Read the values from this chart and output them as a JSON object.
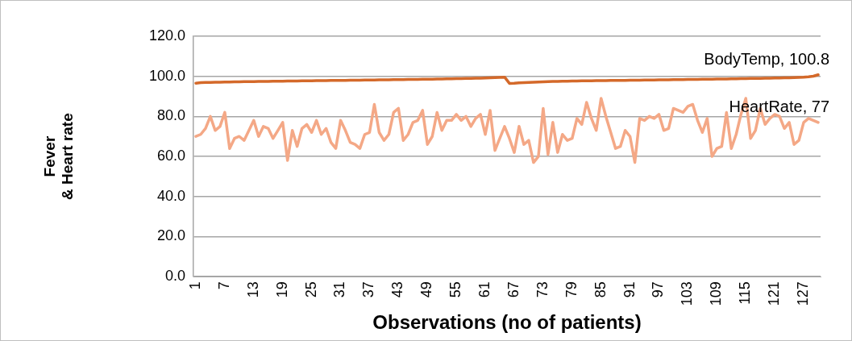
{
  "chart_data": {
    "type": "line",
    "xlabel": "Observations (no of patients)",
    "ylabel": "Fever\n& Heart rate",
    "categories": [
      "1",
      null,
      null,
      null,
      null,
      null,
      "7",
      null,
      null,
      null,
      null,
      null,
      "13",
      null,
      null,
      null,
      null,
      null,
      "19",
      null,
      null,
      null,
      null,
      null,
      "25",
      null,
      null,
      null,
      null,
      null,
      "31",
      null,
      null,
      null,
      null,
      null,
      "37",
      null,
      null,
      null,
      null,
      null,
      "43",
      null,
      null,
      null,
      null,
      null,
      "49",
      null,
      null,
      null,
      null,
      null,
      "55",
      null,
      null,
      null,
      null,
      null,
      "61",
      null,
      null,
      null,
      null,
      null,
      "67",
      null,
      null,
      null,
      null,
      null,
      "73",
      null,
      null,
      null,
      null,
      null,
      "79",
      null,
      null,
      null,
      null,
      null,
      "85",
      null,
      null,
      null,
      null,
      null,
      "91",
      null,
      null,
      null,
      null,
      null,
      "97",
      null,
      null,
      null,
      null,
      null,
      "103",
      null,
      null,
      null,
      null,
      null,
      "109",
      null,
      null,
      null,
      null,
      null,
      "115",
      null,
      null,
      null,
      null,
      null,
      "121",
      null,
      null,
      null,
      null,
      null,
      "127",
      null,
      null,
      null
    ],
    "series": [
      {
        "color": "#d4692a",
        "values": [
          96.6,
          96.9,
          97.0,
          97.0,
          97.1,
          97.1,
          97.2,
          97.2,
          97.3,
          97.3,
          97.4,
          97.4,
          97.4,
          97.5,
          97.5,
          97.5,
          97.6,
          97.6,
          97.6,
          97.7,
          97.7,
          97.7,
          97.8,
          97.8,
          97.8,
          97.9,
          97.9,
          97.9,
          98.0,
          98.0,
          98.0,
          98.0,
          98.1,
          98.1,
          98.1,
          98.2,
          98.2,
          98.2,
          98.3,
          98.3,
          98.3,
          98.4,
          98.4,
          98.4,
          98.5,
          98.5,
          98.5,
          98.6,
          98.6,
          98.6,
          98.7,
          98.7,
          98.8,
          98.8,
          98.9,
          98.9,
          99.0,
          99.0,
          99.1,
          99.1,
          99.2,
          99.3,
          99.4,
          99.5,
          99.6,
          96.5,
          96.6,
          96.8,
          96.9,
          97.0,
          97.1,
          97.2,
          97.3,
          97.4,
          97.5,
          97.5,
          97.6,
          97.6,
          97.7,
          97.7,
          97.8,
          97.8,
          97.8,
          97.9,
          97.9,
          97.9,
          98.0,
          98.0,
          98.0,
          98.0,
          98.1,
          98.1,
          98.1,
          98.2,
          98.2,
          98.2,
          98.3,
          98.3,
          98.3,
          98.4,
          98.4,
          98.4,
          98.5,
          98.5,
          98.5,
          98.6,
          98.6,
          98.6,
          98.7,
          98.7,
          98.7,
          98.8,
          98.8,
          98.9,
          98.9,
          99.0,
          99.0,
          99.0,
          99.1,
          99.1,
          99.2,
          99.2,
          99.3,
          99.3,
          99.4,
          99.5,
          99.6,
          99.8,
          100.1,
          100.8
        ],
        "value_labels": [
          null,
          null,
          null,
          null,
          null,
          null,
          null,
          null,
          null,
          null,
          null,
          null,
          null,
          null,
          null,
          null,
          null,
          null,
          null,
          null,
          null,
          null,
          null,
          null,
          null,
          null,
          null,
          null,
          null,
          null,
          null,
          null,
          null,
          null,
          null,
          null,
          null,
          null,
          null,
          null,
          null,
          null,
          null,
          null,
          null,
          null,
          null,
          null,
          null,
          null,
          null,
          null,
          null,
          null,
          null,
          null,
          null,
          null,
          null,
          null,
          null,
          null,
          null,
          null,
          null,
          null,
          null,
          null,
          null,
          null,
          null,
          null,
          null,
          null,
          null,
          null,
          null,
          null,
          null,
          null,
          null,
          null,
          null,
          null,
          null,
          null,
          null,
          null,
          null,
          null,
          null,
          null,
          null,
          null,
          null,
          null,
          null,
          null,
          null,
          null,
          null,
          null,
          null,
          null,
          null,
          null,
          null,
          null,
          null,
          null,
          null,
          null,
          null,
          null,
          null,
          null,
          null,
          null,
          null,
          null,
          null,
          null,
          null,
          null,
          null,
          null,
          null,
          null,
          null,
          null
        ]
      },
      {
        "color": "#f4a886",
        "values": [
          70,
          71,
          74,
          80,
          73,
          75,
          82,
          64,
          69,
          70,
          68,
          73,
          78,
          70,
          75,
          74,
          69,
          73,
          77,
          58,
          73,
          65,
          74,
          76,
          72,
          78,
          71,
          74,
          67,
          64,
          78,
          73,
          67,
          66,
          64,
          71,
          72,
          86,
          72,
          68,
          71,
          82,
          84,
          68,
          71,
          77,
          78,
          83,
          66,
          70,
          82,
          73,
          78,
          78,
          81,
          78,
          80,
          75,
          79,
          81,
          71,
          83,
          63,
          69,
          75,
          69,
          62,
          75,
          66,
          68,
          57,
          60,
          84,
          61,
          77,
          62,
          71,
          68,
          69,
          79,
          76,
          87,
          79,
          73,
          89,
          80,
          72,
          64,
          65,
          73,
          70,
          57,
          79,
          78,
          80,
          79,
          81,
          73,
          74,
          84,
          83,
          82,
          85,
          86,
          78,
          72,
          79,
          60,
          64,
          65,
          82,
          64,
          71,
          81,
          89,
          69,
          73,
          84,
          76,
          79,
          81,
          80,
          74,
          77,
          66,
          68,
          77,
          79,
          78,
          77
        ],
        "value_labels": [
          null,
          null,
          null,
          null,
          null,
          null,
          null,
          null,
          null,
          null,
          null,
          null,
          null,
          null,
          null,
          null,
          null,
          null,
          null,
          null,
          null,
          null,
          null,
          null,
          null,
          null,
          null,
          null,
          null,
          null,
          null,
          null,
          null,
          null,
          null,
          null,
          null,
          null,
          null,
          null,
          null,
          null,
          null,
          null,
          null,
          null,
          null,
          null,
          null,
          null,
          null,
          null,
          null,
          null,
          null,
          null,
          null,
          null,
          null,
          null,
          null,
          null,
          null,
          null,
          null,
          null,
          null,
          null,
          null,
          null,
          null,
          null,
          null,
          null,
          null,
          null,
          null,
          null,
          null,
          null,
          null,
          null,
          null,
          null,
          null,
          null,
          null,
          null,
          null,
          null,
          null,
          null,
          null,
          null,
          null,
          null,
          null,
          null,
          null,
          null,
          null,
          null,
          null,
          null,
          null,
          null,
          null,
          null,
          null,
          null,
          null,
          null,
          null,
          null,
          null,
          null,
          null,
          null,
          null,
          null,
          null,
          null,
          null,
          null,
          null,
          null,
          null,
          null,
          null,
          null
        ]
      }
    ],
    "annotations": [
      {
        "text": "BodyTemp, 100.8",
        "y": 100.8
      },
      {
        "text": "HeartRate, 77",
        "y": 77
      }
    ],
    "ylim": [
      0,
      120
    ],
    "yticks": [
      {
        "value": 0,
        "label": "0.0"
      },
      {
        "value": 20,
        "label": "20.0"
      },
      {
        "value": 40,
        "label": "40.0"
      },
      {
        "value": 60,
        "label": "60.0"
      },
      {
        "value": 80,
        "label": "80.0"
      },
      {
        "value": 100,
        "label": "100.0"
      },
      {
        "value": 120,
        "label": "120.0"
      }
    ],
    "grid": "y",
    "legend": false,
    "marker": "none",
    "line_style": "solid"
  }
}
